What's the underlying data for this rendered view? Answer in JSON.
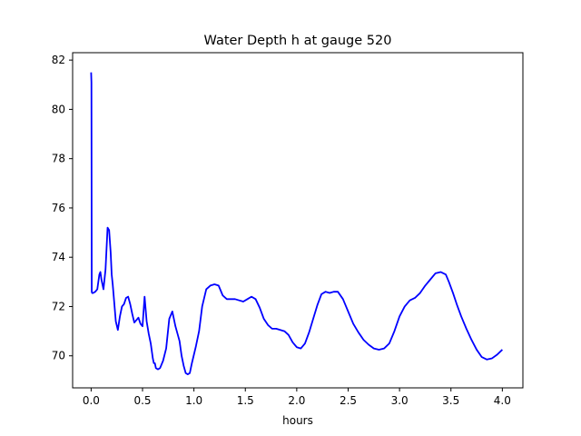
{
  "chart_data": {
    "type": "line",
    "title": "Water Depth h at gauge 520",
    "xlabel": "hours",
    "ylabel": "",
    "xlim": [
      -0.18,
      4.2
    ],
    "ylim": [
      68.7,
      82.3
    ],
    "xticks": [
      0.0,
      0.5,
      1.0,
      1.5,
      2.0,
      2.5,
      3.0,
      3.5,
      4.0
    ],
    "xtick_labels": [
      "0.0",
      "0.5",
      "1.0",
      "1.5",
      "2.0",
      "2.5",
      "3.0",
      "3.5",
      "4.0"
    ],
    "yticks": [
      70,
      72,
      74,
      76,
      78,
      80,
      82
    ],
    "ytick_labels": [
      "70",
      "72",
      "74",
      "76",
      "78",
      "80",
      "82"
    ],
    "grid": false,
    "series": [
      {
        "color": "#0000ff",
        "x": [
          0.0,
          0.003,
          0.006,
          0.01,
          0.02,
          0.04,
          0.06,
          0.08,
          0.09,
          0.1,
          0.12,
          0.14,
          0.16,
          0.175,
          0.19,
          0.2,
          0.21,
          0.22,
          0.24,
          0.26,
          0.28,
          0.3,
          0.32,
          0.34,
          0.36,
          0.38,
          0.4,
          0.42,
          0.44,
          0.46,
          0.48,
          0.5,
          0.52,
          0.54,
          0.56,
          0.58,
          0.6,
          0.61,
          0.62,
          0.63,
          0.65,
          0.67,
          0.7,
          0.73,
          0.76,
          0.79,
          0.82,
          0.84,
          0.86,
          0.88,
          0.9,
          0.92,
          0.94,
          0.96,
          0.98,
          1.0,
          1.02,
          1.05,
          1.08,
          1.12,
          1.16,
          1.2,
          1.24,
          1.28,
          1.32,
          1.36,
          1.4,
          1.44,
          1.48,
          1.52,
          1.56,
          1.6,
          1.64,
          1.68,
          1.72,
          1.76,
          1.8,
          1.84,
          1.88,
          1.92,
          1.96,
          2.0,
          2.04,
          2.08,
          2.12,
          2.16,
          2.2,
          2.24,
          2.28,
          2.32,
          2.36,
          2.4,
          2.45,
          2.5,
          2.55,
          2.6,
          2.65,
          2.7,
          2.75,
          2.8,
          2.85,
          2.9,
          2.95,
          3.0,
          3.05,
          3.1,
          3.15,
          3.2,
          3.25,
          3.3,
          3.35,
          3.4,
          3.45,
          3.48,
          3.52,
          3.56,
          3.6,
          3.65,
          3.7,
          3.75,
          3.8,
          3.85,
          3.9,
          3.95,
          4.0
        ],
        "y": [
          81.5,
          81.1,
          72.6,
          72.55,
          72.55,
          72.6,
          72.7,
          73.3,
          73.4,
          73.1,
          72.7,
          73.5,
          75.2,
          75.1,
          74.2,
          73.3,
          72.9,
          72.4,
          71.4,
          71.05,
          71.6,
          72.0,
          72.1,
          72.35,
          72.4,
          72.1,
          71.7,
          71.35,
          71.45,
          71.55,
          71.3,
          71.2,
          72.4,
          71.4,
          70.9,
          70.5,
          69.9,
          69.7,
          69.7,
          69.5,
          69.45,
          69.5,
          69.8,
          70.3,
          71.5,
          71.8,
          71.2,
          70.9,
          70.6,
          70.0,
          69.6,
          69.3,
          69.25,
          69.3,
          69.7,
          70.05,
          70.4,
          71.0,
          72.0,
          72.7,
          72.85,
          72.9,
          72.85,
          72.45,
          72.3,
          72.3,
          72.3,
          72.25,
          72.2,
          72.3,
          72.4,
          72.3,
          71.95,
          71.5,
          71.25,
          71.1,
          71.1,
          71.05,
          71.0,
          70.85,
          70.55,
          70.35,
          70.3,
          70.5,
          70.95,
          71.5,
          72.05,
          72.5,
          72.6,
          72.55,
          72.6,
          72.6,
          72.3,
          71.8,
          71.3,
          70.95,
          70.65,
          70.45,
          70.3,
          70.25,
          70.3,
          70.5,
          71.0,
          71.6,
          72.0,
          72.25,
          72.35,
          72.55,
          72.85,
          73.1,
          73.35,
          73.4,
          73.3,
          73.0,
          72.55,
          72.05,
          71.6,
          71.1,
          70.65,
          70.25,
          69.95,
          69.85,
          69.9,
          70.05,
          70.25
        ]
      }
    ]
  }
}
